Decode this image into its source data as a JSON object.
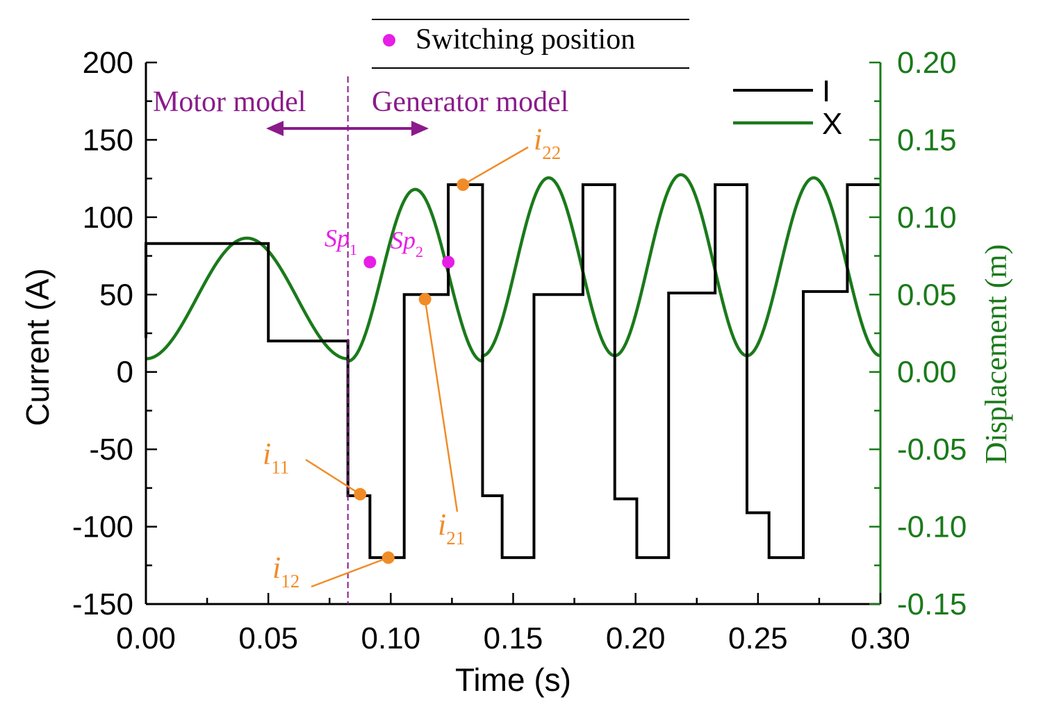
{
  "chart_data": {
    "type": "line",
    "title": "",
    "xlabel": "Time (s)",
    "ylabel_left": "Current (A)",
    "ylabel_right": "Displacement (m)",
    "xlim": [
      0.0,
      0.3
    ],
    "ylim_left": [
      -150,
      200
    ],
    "ylim_right": [
      -0.15,
      0.2
    ],
    "x_ticks": [
      "0.00",
      "0.05",
      "0.10",
      "0.15",
      "0.20",
      "0.25",
      "0.30"
    ],
    "y_left_ticks": [
      "200",
      "150",
      "100",
      "50",
      "0",
      "-50",
      "-100",
      "-150"
    ],
    "y_right_ticks": [
      "0.20",
      "0.15",
      "0.10",
      "0.05",
      "0.00",
      "-0.05",
      "-0.10",
      "-0.15"
    ],
    "colors": {
      "current": "#000000",
      "displacement": "#1a7a1a",
      "switch": "#e61ee6",
      "annotation": "#f08c28",
      "mode": "#8b1a8b"
    },
    "series": [
      {
        "name": "I",
        "axis": "left",
        "points": [
          [
            0.0,
            22
          ],
          [
            0.0,
            83
          ],
          [
            0.05,
            83
          ],
          [
            0.05,
            20
          ],
          [
            0.0825,
            20
          ],
          [
            0.0825,
            -80
          ],
          [
            0.0915,
            -80
          ],
          [
            0.0915,
            -120
          ],
          [
            0.1055,
            -120
          ],
          [
            0.1055,
            50
          ],
          [
            0.1235,
            50
          ],
          [
            0.1235,
            121
          ],
          [
            0.1375,
            121
          ],
          [
            0.1375,
            -80
          ],
          [
            0.1455,
            -80
          ],
          [
            0.1455,
            -120
          ],
          [
            0.1585,
            -120
          ],
          [
            0.1585,
            50
          ],
          [
            0.1785,
            50
          ],
          [
            0.1785,
            121
          ],
          [
            0.1915,
            121
          ],
          [
            0.1915,
            -82
          ],
          [
            0.2005,
            -82
          ],
          [
            0.2005,
            -120
          ],
          [
            0.2135,
            -120
          ],
          [
            0.2135,
            51
          ],
          [
            0.2325,
            51
          ],
          [
            0.2325,
            121
          ],
          [
            0.2455,
            121
          ],
          [
            0.2455,
            -91
          ],
          [
            0.2545,
            -91
          ],
          [
            0.2545,
            -120
          ],
          [
            0.2685,
            -120
          ],
          [
            0.2685,
            52
          ],
          [
            0.2865,
            52
          ],
          [
            0.2865,
            121
          ],
          [
            0.3,
            121
          ]
        ]
      },
      {
        "name": "X",
        "axis": "right",
        "segments": [
          {
            "start": 0.0,
            "end": 0.0825,
            "mid": 0.0475,
            "amp": 0.039
          },
          {
            "start": 0.0825,
            "end": 0.1375,
            "mid": 0.0625,
            "amp": 0.0555
          },
          {
            "start": 0.1375,
            "end": 0.1915,
            "mid": 0.068,
            "amp": 0.0575
          },
          {
            "start": 0.1915,
            "end": 0.2455,
            "mid": 0.069,
            "amp": 0.0585
          },
          {
            "start": 0.2455,
            "end": 0.3,
            "mid": 0.068,
            "amp": 0.0575
          }
        ]
      }
    ],
    "switch_line_x": 0.0825,
    "legend": {
      "position": "top-right",
      "entries": [
        "I",
        "X"
      ]
    },
    "top_legend": {
      "label": "Switching position"
    },
    "mode_labels": {
      "motor": "Motor model",
      "generator": "Generator model"
    },
    "switch_points": [
      {
        "base": "Sp",
        "sub": "1",
        "x": 0.0915,
        "y_right": 0.071
      },
      {
        "base": "Sp",
        "sub": "2",
        "x": 0.1235,
        "y_right": 0.071
      }
    ],
    "annotations": [
      {
        "base": "i",
        "sub": "11",
        "x": 0.0875,
        "y": -79
      },
      {
        "base": "i",
        "sub": "12",
        "x": 0.099,
        "y": -120
      },
      {
        "base": "i",
        "sub": "21",
        "x": 0.114,
        "y": 47
      },
      {
        "base": "i",
        "sub": "22",
        "x": 0.1295,
        "y": 121
      }
    ]
  }
}
